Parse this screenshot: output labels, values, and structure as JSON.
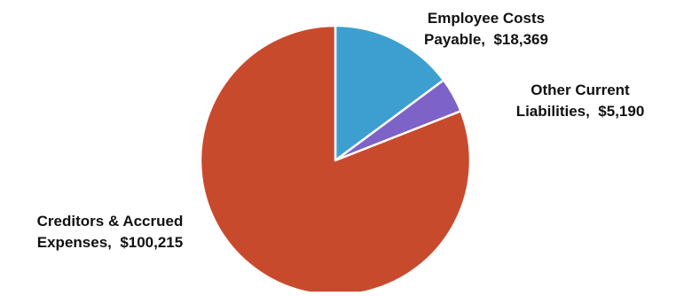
{
  "chart_data": {
    "type": "pie",
    "title": "",
    "slices": [
      {
        "label_lines": [
          "Employee Costs",
          "Payable,  $18,369"
        ],
        "value": 18369,
        "color": "#3c9fd0"
      },
      {
        "label_lines": [
          "Other Current",
          "Liabilities,  $5,190"
        ],
        "value": 5190,
        "color": "#7d62c8"
      },
      {
        "label_lines": [
          "Creditors & Accrued",
          "Expenses,  $100,215"
        ],
        "value": 100215,
        "color": "#c84a2c"
      }
    ],
    "start_angle_deg": 0,
    "direction": "clockwise",
    "legend": "none"
  }
}
